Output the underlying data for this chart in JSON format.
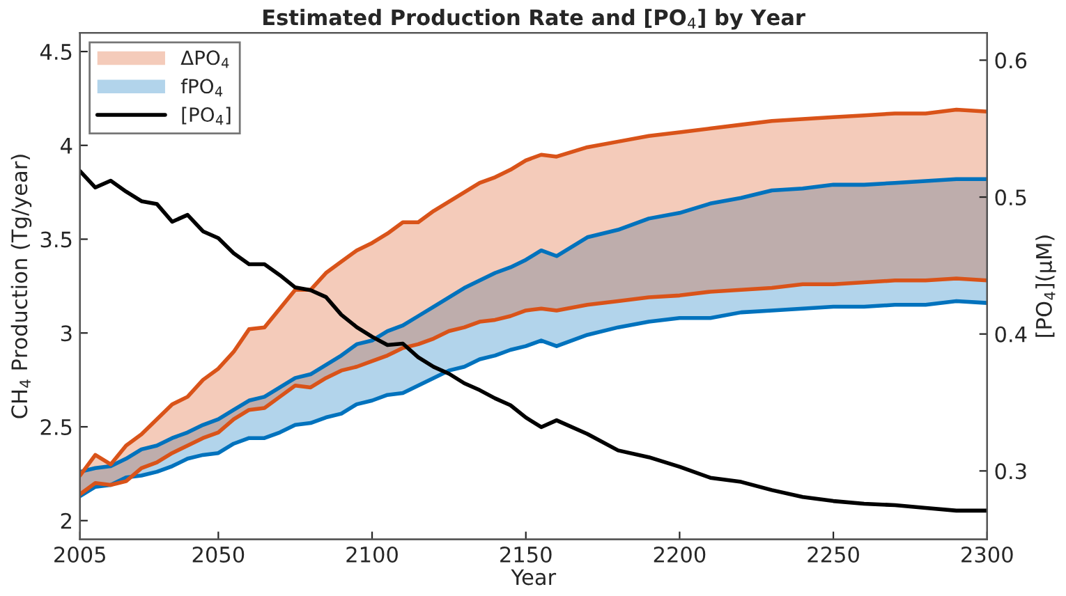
{
  "chart_data": {
    "type": "line",
    "title": "Estimated Production Rate and [PO$_{4}$] by Year",
    "xlabel": "Year",
    "ylabel": "CH$_{4}$ Production (Tg/year)",
    "y2label": "[PO$_{4}$](μM)",
    "x": [
      2005,
      2010,
      2015,
      2020,
      2025,
      2030,
      2035,
      2040,
      2045,
      2050,
      2055,
      2060,
      2065,
      2070,
      2075,
      2080,
      2085,
      2090,
      2095,
      2100,
      2105,
      2110,
      2115,
      2120,
      2125,
      2130,
      2135,
      2140,
      2145,
      2150,
      2155,
      2160,
      2170,
      2180,
      2190,
      2200,
      2210,
      2220,
      2230,
      2240,
      2250,
      2260,
      2270,
      2280,
      2290,
      2300
    ],
    "series": [
      {
        "name": "fPO$_{4}$",
        "color": "#0072bd",
        "values": [
          2.26,
          2.28,
          2.29,
          2.33,
          2.38,
          2.4,
          2.44,
          2.47,
          2.51,
          2.54,
          2.59,
          2.64,
          2.66,
          2.71,
          2.76,
          2.78,
          2.83,
          2.88,
          2.94,
          2.96,
          3.01,
          3.04,
          3.09,
          3.14,
          3.19,
          3.24,
          3.28,
          3.32,
          3.35,
          3.39,
          3.44,
          3.41,
          3.51,
          3.55,
          3.61,
          3.64,
          3.69,
          3.72,
          3.76,
          3.77,
          3.79,
          3.79,
          3.8,
          3.81,
          3.82,
          3.82
        ],
        "lower": [
          2.13,
          2.18,
          2.19,
          2.23,
          2.24,
          2.26,
          2.29,
          2.33,
          2.35,
          2.36,
          2.41,
          2.44,
          2.44,
          2.47,
          2.51,
          2.52,
          2.55,
          2.57,
          2.62,
          2.64,
          2.67,
          2.68,
          2.72,
          2.76,
          2.8,
          2.82,
          2.86,
          2.88,
          2.91,
          2.93,
          2.96,
          2.93,
          2.99,
          3.03,
          3.06,
          3.08,
          3.08,
          3.11,
          3.12,
          3.13,
          3.14,
          3.14,
          3.15,
          3.15,
          3.17,
          3.16
        ],
        "upper": [
          2.26,
          2.28,
          2.29,
          2.33,
          2.38,
          2.4,
          2.44,
          2.47,
          2.51,
          2.54,
          2.59,
          2.64,
          2.66,
          2.71,
          2.76,
          2.78,
          2.83,
          2.88,
          2.94,
          2.96,
          3.01,
          3.04,
          3.09,
          3.14,
          3.19,
          3.24,
          3.28,
          3.32,
          3.35,
          3.39,
          3.44,
          3.41,
          3.51,
          3.55,
          3.61,
          3.64,
          3.69,
          3.72,
          3.76,
          3.77,
          3.79,
          3.79,
          3.8,
          3.81,
          3.82,
          3.82
        ]
      },
      {
        "color": "#0072bd",
        "values": [
          2.13,
          2.18,
          2.19,
          2.23,
          2.24,
          2.26,
          2.29,
          2.33,
          2.35,
          2.36,
          2.41,
          2.44,
          2.44,
          2.47,
          2.51,
          2.52,
          2.55,
          2.57,
          2.62,
          2.64,
          2.67,
          2.68,
          2.72,
          2.76,
          2.8,
          2.82,
          2.86,
          2.88,
          2.91,
          2.93,
          2.96,
          2.93,
          2.99,
          3.03,
          3.06,
          3.08,
          3.08,
          3.11,
          3.12,
          3.13,
          3.14,
          3.14,
          3.15,
          3.15,
          3.17,
          3.16
        ]
      },
      {
        "name": "ΔPO$_{4}$",
        "color": "#d95319",
        "values": [
          2.24,
          2.35,
          2.3,
          2.4,
          2.46,
          2.54,
          2.62,
          2.66,
          2.75,
          2.81,
          2.9,
          3.02,
          3.03,
          3.13,
          3.23,
          3.23,
          3.32,
          3.38,
          3.44,
          3.48,
          3.53,
          3.59,
          3.59,
          3.65,
          3.7,
          3.75,
          3.8,
          3.83,
          3.87,
          3.92,
          3.95,
          3.94,
          3.99,
          4.02,
          4.05,
          4.07,
          4.09,
          4.11,
          4.13,
          4.14,
          4.15,
          4.16,
          4.17,
          4.17,
          4.19,
          4.18
        ],
        "lower": [
          2.14,
          2.2,
          2.19,
          2.21,
          2.28,
          2.31,
          2.36,
          2.4,
          2.44,
          2.47,
          2.54,
          2.59,
          2.6,
          2.66,
          2.72,
          2.71,
          2.76,
          2.8,
          2.82,
          2.85,
          2.88,
          2.92,
          2.94,
          2.97,
          3.01,
          3.03,
          3.06,
          3.07,
          3.09,
          3.12,
          3.13,
          3.12,
          3.15,
          3.17,
          3.19,
          3.2,
          3.22,
          3.23,
          3.24,
          3.26,
          3.26,
          3.27,
          3.28,
          3.28,
          3.29,
          3.28
        ],
        "upper": [
          2.24,
          2.35,
          2.3,
          2.4,
          2.46,
          2.54,
          2.62,
          2.66,
          2.75,
          2.81,
          2.9,
          3.02,
          3.03,
          3.13,
          3.23,
          3.23,
          3.32,
          3.38,
          3.44,
          3.48,
          3.53,
          3.59,
          3.59,
          3.65,
          3.7,
          3.75,
          3.8,
          3.83,
          3.87,
          3.92,
          3.95,
          3.94,
          3.99,
          4.02,
          4.05,
          4.07,
          4.09,
          4.11,
          4.13,
          4.14,
          4.15,
          4.16,
          4.17,
          4.17,
          4.19,
          4.18
        ]
      },
      {
        "color": "#d95319",
        "values": [
          2.14,
          2.2,
          2.19,
          2.21,
          2.28,
          2.31,
          2.36,
          2.4,
          2.44,
          2.47,
          2.54,
          2.59,
          2.6,
          2.66,
          2.72,
          2.71,
          2.76,
          2.8,
          2.82,
          2.85,
          2.88,
          2.92,
          2.94,
          2.97,
          3.01,
          3.03,
          3.06,
          3.07,
          3.09,
          3.12,
          3.13,
          3.12,
          3.15,
          3.17,
          3.19,
          3.2,
          3.22,
          3.23,
          3.24,
          3.26,
          3.26,
          3.27,
          3.28,
          3.28,
          3.29,
          3.28
        ]
      },
      {
        "name": "[PO$_{4}$]",
        "axis": "y2",
        "color": "#000000",
        "values": [
          0.519,
          0.507,
          0.512,
          0.504,
          0.497,
          0.495,
          0.482,
          0.487,
          0.475,
          0.47,
          0.459,
          0.451,
          0.451,
          0.443,
          0.434,
          0.432,
          0.427,
          0.414,
          0.405,
          0.398,
          0.392,
          0.393,
          0.383,
          0.376,
          0.371,
          0.364,
          0.359,
          0.353,
          0.348,
          0.339,
          0.332,
          0.337,
          0.327,
          0.315,
          0.31,
          0.303,
          0.295,
          0.292,
          0.286,
          0.281,
          0.278,
          0.276,
          0.275,
          0.273,
          0.271,
          0.271
        ]
      }
    ],
    "xlim": [
      2005,
      2300
    ],
    "xticks": [
      2005,
      2050,
      2100,
      2150,
      2200,
      2250,
      2300
    ],
    "ylim": [
      1.9,
      4.6
    ],
    "yticks": [
      2,
      2.5,
      3,
      3.5,
      4,
      4.5
    ],
    "y2lim": [
      0.25,
      0.62
    ],
    "y2ticks": [
      0.3,
      0.4,
      0.5,
      0.6
    ],
    "legend": "top left",
    "grid": false,
    "marker": "none",
    "line_style": "solid"
  }
}
